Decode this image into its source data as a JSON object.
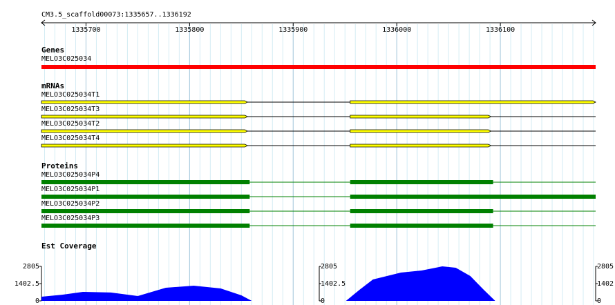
{
  "ruler": {
    "label": "CM3.5_scaffold00073:1335657..1336192",
    "range": [
      1335657,
      1336192
    ],
    "ticks": [
      1335700,
      1335800,
      1335900,
      1336000,
      1336100
    ]
  },
  "tracks": [
    {
      "title": "Genes",
      "kind": "gene",
      "color": "#ff0000",
      "features": [
        {
          "name": "MELO3C025034",
          "start": 1335657,
          "end": 1336192,
          "blocks": [
            [
              1335657,
              1336192
            ]
          ]
        }
      ]
    },
    {
      "title": "mRNAs",
      "kind": "mrna",
      "color": "#ffff00",
      "features": [
        {
          "name": "MELO3C025034T1",
          "start": 1335657,
          "end": 1336192,
          "blocks": [
            [
              1335657,
              1335856
            ],
            [
              1335955,
              1336192
            ]
          ]
        },
        {
          "name": "MELO3C025034T3",
          "start": 1335657,
          "end": 1336192,
          "blocks": [
            [
              1335657,
              1335856
            ],
            [
              1335955,
              1336091
            ]
          ]
        },
        {
          "name": "MELO3C025034T2",
          "start": 1335657,
          "end": 1336192,
          "blocks": [
            [
              1335657,
              1335856
            ],
            [
              1335955,
              1336091
            ]
          ]
        },
        {
          "name": "MELO3C025034T4",
          "start": 1335657,
          "end": 1336192,
          "blocks": [
            [
              1335657,
              1335856
            ],
            [
              1335955,
              1336091
            ]
          ]
        }
      ]
    },
    {
      "title": "Proteins",
      "kind": "protein",
      "color": "#008000",
      "features": [
        {
          "name": "MELO3C025034P4",
          "start": 1335657,
          "end": 1336192,
          "blocks": [
            [
              1335657,
              1335858
            ],
            [
              1335955,
              1336093
            ]
          ]
        },
        {
          "name": "MELO3C025034P1",
          "start": 1335657,
          "end": 1336192,
          "blocks": [
            [
              1335657,
              1335858
            ],
            [
              1335955,
              1336192
            ]
          ]
        },
        {
          "name": "MELO3C025034P2",
          "start": 1335657,
          "end": 1336192,
          "blocks": [
            [
              1335657,
              1335858
            ],
            [
              1335955,
              1336093
            ]
          ]
        },
        {
          "name": "MELO3C025034P3",
          "start": 1335657,
          "end": 1336192,
          "blocks": [
            [
              1335657,
              1335858
            ],
            [
              1335955,
              1336093
            ]
          ]
        }
      ]
    }
  ],
  "coverage": {
    "title": "Est Coverage",
    "color": "#0000ff",
    "ylim": [
      0,
      2805
    ],
    "yticks": [
      0,
      1402.5,
      2805
    ],
    "x": [
      1335657,
      1335677,
      1335697,
      1335724,
      1335750,
      1335777,
      1335804,
      1335830,
      1335850,
      1335860,
      null,
      1335951,
      1335964,
      1335977,
      1336004,
      1336024,
      1336044,
      1336057,
      1336071,
      1336084,
      1336095
    ],
    "values": [
      336,
      500,
      730,
      680,
      390,
      1066,
      1234,
      1010,
      450,
      0,
      null,
      0,
      900,
      1740,
      2300,
      2470,
      2805,
      2690,
      2020,
      900,
      0
    ]
  }
}
